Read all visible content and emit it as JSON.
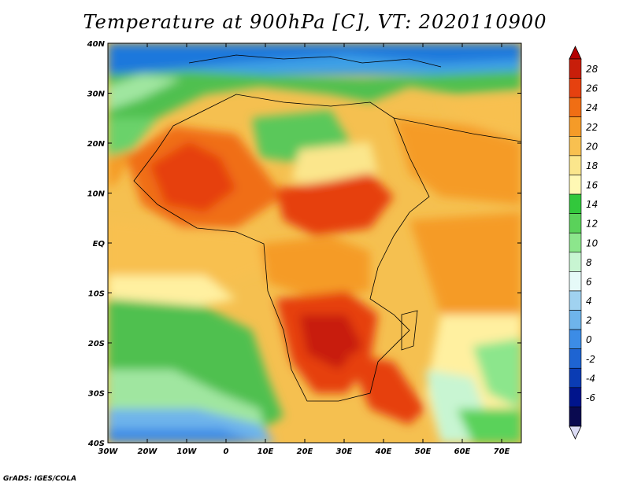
{
  "title": "Temperature at 900hPa [C], VT: 2020110900",
  "credit": "GrADS: IGES/COLA",
  "map": {
    "lat_ticks": [
      "40N",
      "30N",
      "20N",
      "10N",
      "EQ",
      "10S",
      "20S",
      "30S",
      "40S"
    ],
    "lon_ticks": [
      "30W",
      "20W",
      "10W",
      "0",
      "10E",
      "20E",
      "30E",
      "40E",
      "50E",
      "60E",
      "70E"
    ]
  },
  "colorbar": {
    "labels": [
      "28",
      "26",
      "24",
      "22",
      "20",
      "18",
      "16",
      "14",
      "12",
      "10",
      "8",
      "6",
      "4",
      "2",
      "0",
      "-2",
      "-4",
      "-6"
    ],
    "colors": [
      "#c81e0a",
      "#e6410f",
      "#f06e14",
      "#f59b28",
      "#f8c050",
      "#fbe68c",
      "#fff8b4",
      "#32c83c",
      "#5ad25a",
      "#8ce68c",
      "#c8f5d2",
      "#e6faf8",
      "#a0d2f0",
      "#6eb4eb",
      "#3c8ce6",
      "#1e64d2",
      "#0a3cb4",
      "#00148c",
      "#0a0a50"
    ],
    "over_color": "#b40000",
    "under_color": "#dcdcf5"
  }
}
